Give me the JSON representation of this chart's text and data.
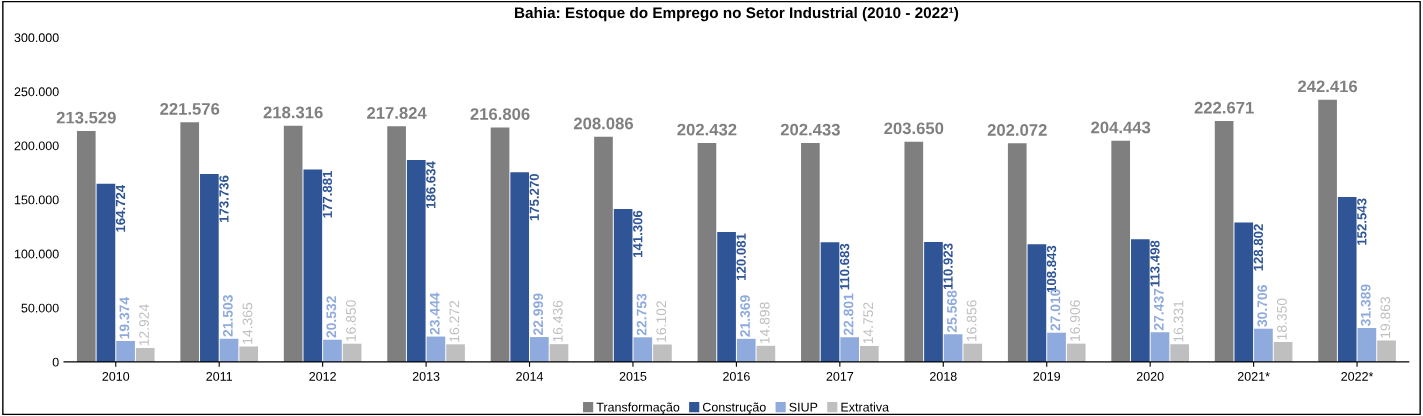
{
  "chart_data": {
    "type": "bar",
    "title": "Bahia: Estoque do Emprego no Setor Industrial (2010 - 2022¹)",
    "categories": [
      "2010",
      "2011",
      "2012",
      "2013",
      "2014",
      "2015",
      "2016",
      "2017",
      "2018",
      "2019",
      "2020",
      "2021*",
      "2022*"
    ],
    "series": [
      {
        "name": "Transformação",
        "color": "#7f7f7f",
        "values": [
          213529,
          221576,
          218316,
          217824,
          216806,
          208086,
          202432,
          202433,
          203650,
          202072,
          204443,
          222671,
          242416
        ],
        "value_labels": [
          "213.529",
          "221.576",
          "218.316",
          "217.824",
          "216.806",
          "208.086",
          "202.432",
          "202.433",
          "203.650",
          "202.072",
          "204.443",
          "222.671",
          "242.416"
        ]
      },
      {
        "name": "Construção",
        "color": "#2f5597",
        "values": [
          164724,
          173736,
          177881,
          186634,
          175270,
          141306,
          120081,
          110683,
          110923,
          108843,
          113498,
          128802,
          152543
        ],
        "value_labels": [
          "164.724",
          "173.736",
          "177.881",
          "186.634",
          "175.270",
          "141.306",
          "120.081",
          "110.683",
          "110.923",
          "108.843",
          "113.498",
          "128.802",
          "152.543"
        ]
      },
      {
        "name": "SIUP",
        "color": "#8faadc",
        "values": [
          19374,
          21503,
          20532,
          23444,
          22999,
          22753,
          21369,
          22801,
          25568,
          27010,
          27437,
          30706,
          31389
        ],
        "value_labels": [
          "19.374",
          "21.503",
          "20.532",
          "23.444",
          "22.999",
          "22.753",
          "21.369",
          "22.801",
          "25.568",
          "27.010",
          "27.437",
          "30.706",
          "31.389"
        ]
      },
      {
        "name": "Extrativa",
        "color": "#bfbfbf",
        "values": [
          12924,
          14365,
          16850,
          16272,
          16436,
          16102,
          14898,
          14752,
          16856,
          16906,
          16331,
          18350,
          19863
        ],
        "value_labels": [
          "12.924",
          "14.365",
          "16.850",
          "16.272",
          "16.436",
          "16.102",
          "14.898",
          "14.752",
          "16.856",
          "16.906",
          "16.331",
          "18.350",
          "19.863"
        ]
      }
    ],
    "ylim": [
      0,
      300000
    ],
    "yticks": [
      0,
      {
        "value": 50000,
        "label": "50.000"
      },
      {
        "value": 100000,
        "label": "100.000"
      },
      {
        "value": 150000,
        "label": "150.000"
      },
      {
        "value": 200000,
        "label": "200.000"
      },
      {
        "value": 250000,
        "label": "250.000"
      },
      {
        "value": 300000,
        "label": "300.000"
      }
    ],
    "legend": "bottom",
    "grid": false
  }
}
